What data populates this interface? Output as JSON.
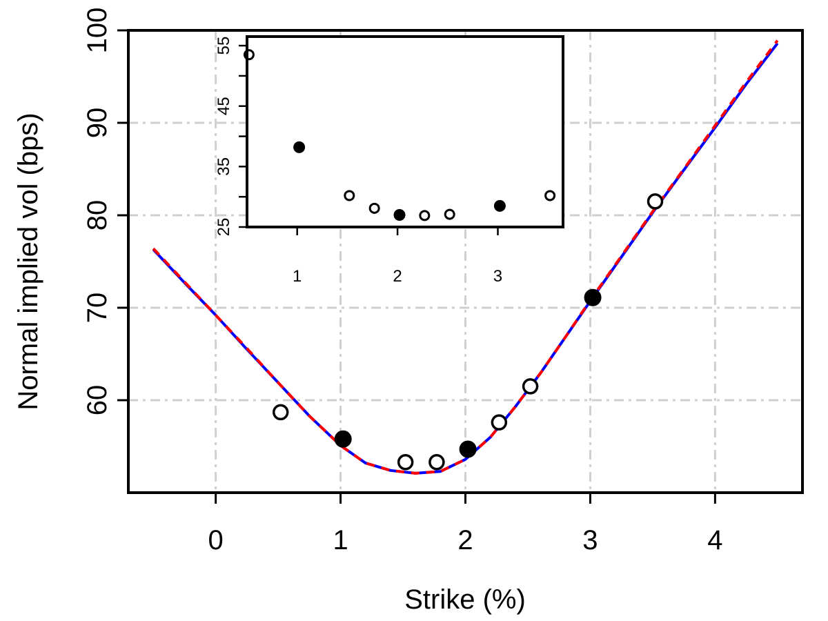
{
  "chart_data": [
    {
      "type": "scatter",
      "title": "",
      "xlabel": "Strike (%)",
      "ylabel": "Normal implied vol (bps)",
      "xlim": [
        -0.7,
        4.7
      ],
      "ylim": [
        50,
        100
      ],
      "xticks": [
        0,
        1,
        2,
        3,
        4
      ],
      "xtick_labels": [
        "0",
        "1",
        "2",
        "3",
        "4"
      ],
      "yticks": [
        60,
        70,
        80,
        90,
        100
      ],
      "ytick_labels": [
        "60",
        "70",
        "80",
        "90",
        "100"
      ],
      "grid": true,
      "series": [
        {
          "style": "line",
          "color": "#0000ff",
          "x": [
            -0.5,
            -0.25,
            0,
            0.25,
            0.5,
            0.75,
            1.0,
            1.2,
            1.4,
            1.6,
            1.8,
            2.0,
            2.2,
            2.4,
            2.6,
            2.8,
            3.0,
            3.25,
            3.5,
            3.75,
            4.0,
            4.25,
            4.5
          ],
          "y": [
            76.3,
            72.7,
            69.2,
            65.5,
            61.9,
            58.3,
            55.1,
            53.2,
            52.4,
            52.1,
            52.3,
            53.6,
            56.0,
            59.3,
            62.9,
            66.8,
            70.7,
            75.5,
            80.3,
            84.9,
            89.5,
            94.2,
            98.6
          ]
        },
        {
          "style": "dashed-line",
          "color": "#ff0000",
          "x": [
            -0.5,
            -0.25,
            0,
            0.25,
            0.5,
            0.75,
            1.0,
            1.2,
            1.4,
            1.6,
            1.8,
            2.0,
            2.2,
            2.4,
            2.6,
            2.8,
            3.0,
            3.25,
            3.5,
            3.75,
            4.0,
            4.25,
            4.5
          ],
          "y": [
            76.4,
            72.8,
            69.2,
            65.6,
            61.9,
            58.3,
            55.1,
            53.2,
            52.4,
            52.1,
            52.3,
            53.6,
            56.0,
            59.3,
            62.9,
            66.8,
            70.8,
            75.6,
            80.4,
            85.0,
            89.7,
            94.4,
            98.9
          ]
        },
        {
          "style": "open-markers",
          "color": "#000000",
          "x": [
            0.52,
            1.52,
            1.77,
            2.27,
            2.52,
            3.52
          ],
          "y": [
            58.7,
            53.3,
            53.3,
            57.6,
            61.5,
            81.5
          ]
        },
        {
          "style": "filled-markers",
          "color": "#000000",
          "x": [
            1.02,
            2.02,
            3.02
          ],
          "y": [
            55.8,
            54.7,
            71.1
          ]
        }
      ]
    },
    {
      "type": "scatter",
      "title": "",
      "xlabel": "",
      "ylabel": "",
      "xlim": [
        0.5,
        3.65
      ],
      "ylim": [
        25,
        56.5
      ],
      "xticks": [
        1,
        2,
        3
      ],
      "xtick_labels": [
        "1",
        "2",
        "3"
      ],
      "yticks": [
        25,
        30,
        35,
        40,
        45,
        50,
        55
      ],
      "ytick_labels": [
        "25",
        "",
        "35",
        "",
        "45",
        "",
        "55"
      ],
      "grid": false,
      "series": [
        {
          "style": "open-markers",
          "color": "#000000",
          "x": [
            0.52,
            1.52,
            1.77,
            2.27,
            2.52,
            3.52
          ],
          "y": [
            53.5,
            30.2,
            28.1,
            26.9,
            27.1,
            30.2
          ]
        },
        {
          "style": "filled-markers",
          "color": "#000000",
          "x": [
            1.02,
            2.02,
            3.02
          ],
          "y": [
            38.2,
            27.0,
            28.5
          ]
        }
      ]
    }
  ]
}
